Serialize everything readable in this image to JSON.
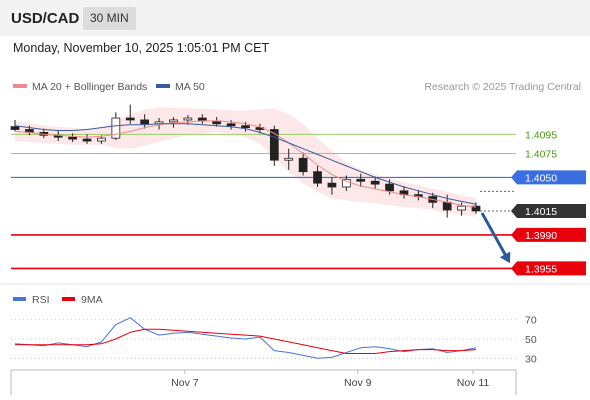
{
  "header": {
    "symbol": "USD/CAD",
    "timeframe": "30 MIN"
  },
  "timestamp": "Monday, November 10, 2025 1:05:01 PM CET",
  "legend": {
    "bollinger": "MA 20 + Bollinger Bands",
    "ma50": "MA 50"
  },
  "attribution": "Research © 2025 Trading Central",
  "rsi_legend": {
    "rsi": "RSI",
    "ma9": "9MA"
  },
  "colors": {
    "bollinger": "#f08a8a",
    "ma50": "#3a5a9a",
    "pivot": "#3b6fe0",
    "support": "#e8000b",
    "resistance": "#9acd68",
    "price": "#333333",
    "forecast_arrow": "#2a5a9a",
    "rsi": "#4a74d6",
    "rsi_ma": "#e8000b"
  },
  "chart_data": [
    {
      "type": "line",
      "title": "",
      "x_ticks": [
        "Nov 7",
        "Nov 9",
        "Nov 11"
      ],
      "ylim": [
        1.3945,
        1.4135
      ],
      "series": [
        {
          "name": "MA 20 + Bollinger Bands",
          "values": [
            1.4098,
            1.4097,
            1.4095,
            1.4094,
            1.4093,
            1.4092,
            1.4093,
            1.4095,
            1.4098,
            1.4102,
            1.4105,
            1.4107,
            1.4108,
            1.4109,
            1.4109,
            1.4108,
            1.4106,
            1.4103,
            1.4096,
            1.4086,
            1.4075,
            1.4063,
            1.4053,
            1.4046,
            1.4041,
            1.4038,
            1.4035,
            1.4032,
            1.403,
            1.4027,
            1.4024,
            1.4021,
            1.4019
          ]
        },
        {
          "name": "MA 50",
          "values": [
            1.4104,
            1.4102,
            1.41,
            1.4099,
            1.4099,
            1.41,
            1.4102,
            1.4104,
            1.4105,
            1.4105,
            1.4106,
            1.4106,
            1.4106,
            1.4105,
            1.4104,
            1.4103,
            1.4101,
            1.4097,
            1.4092,
            1.4086,
            1.408,
            1.4074,
            1.4068,
            1.4062,
            1.4056,
            1.405,
            1.4045,
            1.404,
            1.4036,
            1.4032,
            1.4028,
            1.4025,
            1.4022
          ]
        }
      ],
      "candles": [
        [
          1.4103,
          1.411,
          1.4098,
          1.41
        ],
        [
          1.41,
          1.4104,
          1.4094,
          1.4097
        ],
        [
          1.4097,
          1.4101,
          1.4091,
          1.4094
        ],
        [
          1.4094,
          1.4099,
          1.4088,
          1.4092
        ],
        [
          1.4092,
          1.4096,
          1.4087,
          1.409
        ],
        [
          1.409,
          1.4095,
          1.4085,
          1.4088
        ],
        [
          1.4088,
          1.4094,
          1.4085,
          1.4091
        ],
        [
          1.4091,
          1.4118,
          1.4089,
          1.4112
        ],
        [
          1.4112,
          1.4126,
          1.4106,
          1.411
        ],
        [
          1.411,
          1.4116,
          1.4101,
          1.4106
        ],
        [
          1.4106,
          1.4112,
          1.41,
          1.4108
        ],
        [
          1.4108,
          1.4113,
          1.4102,
          1.411
        ],
        [
          1.411,
          1.4115,
          1.4105,
          1.4112
        ],
        [
          1.4112,
          1.4116,
          1.4106,
          1.4109
        ],
        [
          1.4109,
          1.4113,
          1.4103,
          1.4106
        ],
        [
          1.4106,
          1.411,
          1.41,
          1.4104
        ],
        [
          1.4104,
          1.4108,
          1.4098,
          1.4102
        ],
        [
          1.4102,
          1.4106,
          1.4096,
          1.41
        ],
        [
          1.41,
          1.4104,
          1.4062,
          1.4068
        ],
        [
          1.4068,
          1.408,
          1.4058,
          1.407
        ],
        [
          1.407,
          1.4076,
          1.4052,
          1.4056
        ],
        [
          1.4056,
          1.4062,
          1.404,
          1.4044
        ],
        [
          1.4044,
          1.405,
          1.4032,
          1.404
        ],
        [
          1.404,
          1.4052,
          1.4036,
          1.4048
        ],
        [
          1.4048,
          1.4054,
          1.404,
          1.4046
        ],
        [
          1.4046,
          1.4051,
          1.4038,
          1.4043
        ],
        [
          1.4043,
          1.4048,
          1.4032,
          1.4036
        ],
        [
          1.4036,
          1.4041,
          1.4028,
          1.4032
        ],
        [
          1.4032,
          1.4037,
          1.4026,
          1.403
        ],
        [
          1.403,
          1.4034,
          1.4018,
          1.4024
        ],
        [
          1.4024,
          1.4032,
          1.4008,
          1.4016
        ],
        [
          1.4016,
          1.4024,
          1.401,
          1.402
        ],
        [
          1.402,
          1.4024,
          1.4012,
          1.4015
        ]
      ],
      "levels": [
        {
          "label": "1.4095",
          "value": 1.4095,
          "kind": "resistance"
        },
        {
          "label": "1.4075",
          "value": 1.4075,
          "kind": "resistance"
        },
        {
          "label": "1.4050",
          "value": 1.405,
          "kind": "pivot"
        },
        {
          "label": "1.4015",
          "value": 1.4015,
          "kind": "price"
        },
        {
          "label": "1.3990",
          "value": 1.399,
          "kind": "support"
        },
        {
          "label": "1.3955",
          "value": 1.3955,
          "kind": "support"
        }
      ],
      "forecast": {
        "from": 1.4015,
        "to": 1.396
      }
    },
    {
      "type": "line",
      "title": "",
      "ylim": [
        20,
        80
      ],
      "y_ticks": [
        "70",
        "50",
        "30"
      ],
      "series": [
        {
          "name": "RSI",
          "values": [
            45,
            44,
            43,
            46,
            44,
            42,
            47,
            65,
            72,
            60,
            54,
            56,
            57,
            55,
            53,
            51,
            50,
            52,
            38,
            36,
            33,
            30,
            31,
            36,
            41,
            42,
            40,
            37,
            39,
            40,
            36,
            38,
            41
          ]
        },
        {
          "name": "9MA",
          "values": [
            44,
            44,
            44,
            44,
            44,
            44,
            45,
            50,
            57,
            60,
            60,
            59,
            58,
            57,
            56,
            55,
            54,
            53,
            50,
            47,
            44,
            41,
            38,
            35,
            35,
            35,
            37,
            38,
            39,
            39,
            38,
            38,
            39
          ]
        }
      ]
    }
  ]
}
